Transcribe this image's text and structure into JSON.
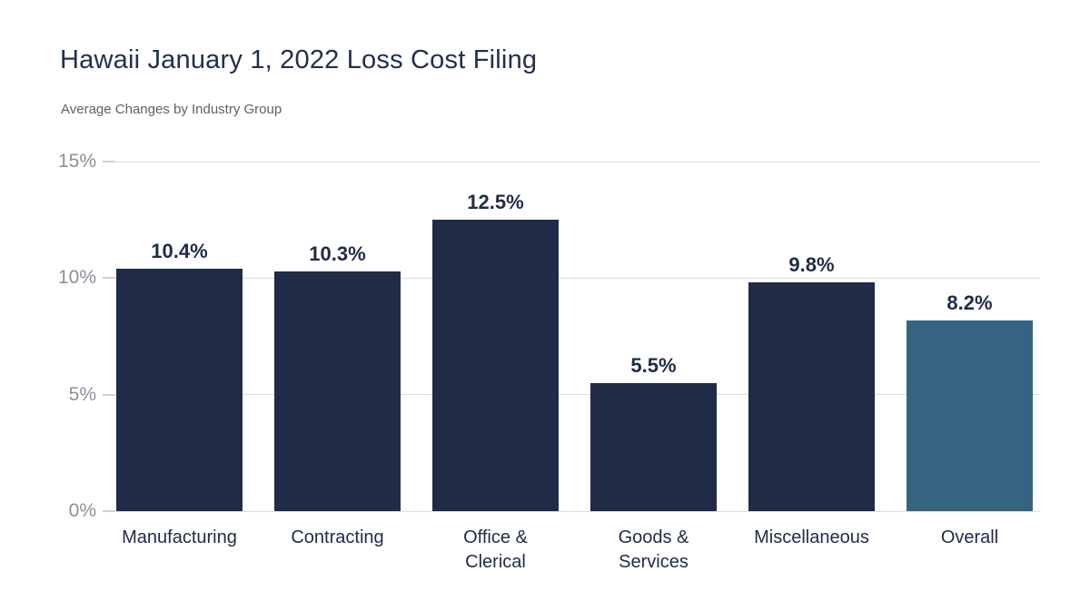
{
  "chart_data": {
    "type": "bar",
    "title": "Hawaii January 1, 2022 Loss Cost Filing",
    "subtitle": "Average Changes by Industry Group",
    "categories": [
      "Manufacturing",
      "Contracting",
      "Office &\nClerical",
      "Goods &\nServices",
      "Miscellaneous",
      "Overall"
    ],
    "values": [
      10.4,
      10.3,
      12.5,
      5.5,
      9.8,
      8.2
    ],
    "data_labels": [
      "10.4%",
      "10.3%",
      "12.5%",
      "5.5%",
      "9.8%",
      "8.2%"
    ],
    "y_ticks": [
      {
        "value": 0,
        "label": "0%"
      },
      {
        "value": 5,
        "label": "5%"
      },
      {
        "value": 10,
        "label": "10%"
      },
      {
        "value": 15,
        "label": "15%"
      }
    ],
    "ylim": [
      0,
      15
    ],
    "xlabel": "",
    "ylabel": "",
    "grid": true,
    "legend": "none",
    "highlight_category": "Overall",
    "bar_colors": [
      "#1F2B47",
      "#1F2B47",
      "#1F2B47",
      "#1F2B47",
      "#1F2B47",
      "#34647F"
    ],
    "colors": {
      "bar": "#1F2B47",
      "highlight_bar": "#34647F",
      "gridline": "#DADCDE",
      "tick_dash": "#CDD0D4",
      "tick_label": "#8A9199",
      "axis_label": "#1F2B47",
      "data_label": "#1F2B47",
      "title": "#22304E",
      "subtitle": "#5C6268"
    }
  }
}
